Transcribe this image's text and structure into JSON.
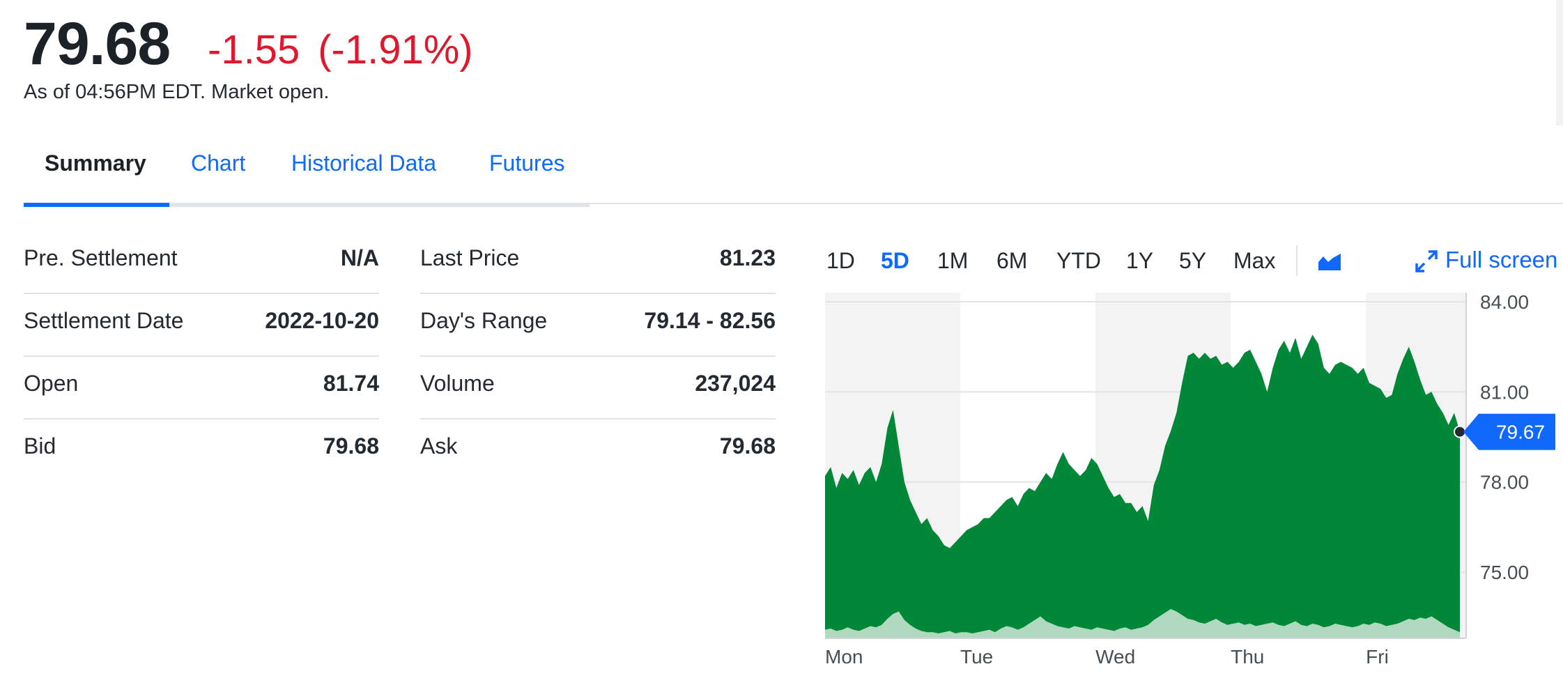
{
  "quote": {
    "price": "79.68",
    "change": "-1.55",
    "change_pct": "(-1.91%)",
    "as_of": "As of 04:56PM EDT. Market open."
  },
  "tabs": [
    {
      "label": "Summary",
      "active": true
    },
    {
      "label": "Chart"
    },
    {
      "label": "Historical Data"
    },
    {
      "label": "Futures"
    }
  ],
  "stats_left": [
    {
      "label": "Pre. Settlement",
      "value": "N/A"
    },
    {
      "label": "Settlement Date",
      "value": "2022-10-20"
    },
    {
      "label": "Open",
      "value": "81.74"
    },
    {
      "label": "Bid",
      "value": "79.68"
    }
  ],
  "stats_right": [
    {
      "label": "Last Price",
      "value": "81.23"
    },
    {
      "label": "Day's Range",
      "value": "79.14 - 82.56"
    },
    {
      "label": "Volume",
      "value": "237,024"
    },
    {
      "label": "Ask",
      "value": "79.68"
    }
  ],
  "chart_controls": {
    "ranges": [
      "1D",
      "5D",
      "1M",
      "6M",
      "YTD",
      "1Y",
      "5Y",
      "Max"
    ],
    "active_range": "5D",
    "chart_type_icon": "area-chart-icon",
    "fullscreen_label": "Full screen",
    "fullscreen_icon": "expand-icon"
  },
  "colors": {
    "accent": "#0f69ff",
    "negative": "#e0182d",
    "area_fill": "#008737",
    "volume_fill": "#cfe8d8",
    "band": "#f3f3f3"
  },
  "chart_data": {
    "type": "area",
    "x_labels": [
      "Mon",
      "Tue",
      "Wed",
      "Thu",
      "Fri"
    ],
    "y_ticks": [
      "84.00",
      "81.00",
      "78.00",
      "75.00"
    ],
    "y_tick_values": [
      84,
      81,
      78,
      75
    ],
    "ylim": [
      72.8,
      84.3
    ],
    "last_value_label": "79.67",
    "last_value": 79.67,
    "grid": true,
    "series": [
      {
        "values": [
          78.2,
          78.5,
          77.8,
          78.3,
          78.1,
          78.4,
          77.9,
          78.3,
          78.5,
          78.0,
          78.6,
          79.8,
          80.4,
          79.2,
          78.0,
          77.4,
          77.0,
          76.6,
          76.8,
          76.4,
          76.2,
          75.9,
          75.8,
          76.0,
          76.2,
          76.4,
          76.5,
          76.6,
          76.8,
          76.8,
          77.0,
          77.2,
          77.4,
          77.5,
          77.2,
          77.6,
          77.8,
          77.7,
          78.0,
          78.3,
          78.1,
          78.6,
          79.0,
          78.6,
          78.4,
          78.2,
          78.4,
          78.8,
          78.6,
          78.2,
          77.8,
          77.5,
          77.6,
          77.3,
          77.3,
          77.0,
          77.2,
          76.7,
          77.9,
          78.4,
          79.2,
          79.7,
          80.3,
          81.3,
          82.2,
          82.3,
          82.1,
          82.3,
          82.1,
          82.2,
          81.9,
          82.0,
          81.8,
          82.0,
          82.3,
          82.4,
          82.0,
          81.6,
          81.0,
          81.8,
          82.4,
          82.7,
          82.3,
          82.8,
          82.1,
          82.5,
          82.9,
          82.6,
          81.8,
          81.6,
          81.9,
          82.0,
          81.9,
          81.8,
          81.6,
          81.8,
          81.3,
          81.2,
          81.1,
          80.8,
          80.9,
          81.6,
          82.1,
          82.5,
          82.0,
          81.4,
          80.9,
          81.0,
          80.6,
          80.3,
          79.9,
          80.3,
          79.67
        ],
        "volume": [
          0.7,
          0.8,
          0.6,
          0.7,
          0.9,
          0.7,
          0.6,
          0.8,
          1.0,
          0.9,
          1.1,
          1.6,
          2.0,
          2.2,
          1.5,
          1.1,
          0.8,
          0.6,
          0.5,
          0.5,
          0.4,
          0.5,
          0.6,
          0.4,
          0.5,
          0.5,
          0.4,
          0.5,
          0.6,
          0.7,
          0.5,
          0.8,
          1.0,
          0.9,
          0.7,
          0.9,
          1.2,
          1.5,
          1.8,
          1.4,
          1.2,
          1.0,
          0.9,
          0.8,
          1.0,
          0.9,
          0.8,
          0.7,
          0.9,
          0.8,
          0.7,
          0.6,
          0.8,
          0.9,
          0.7,
          0.8,
          0.9,
          1.1,
          1.5,
          1.8,
          2.1,
          2.4,
          2.2,
          1.9,
          1.6,
          1.5,
          1.3,
          1.2,
          1.4,
          1.6,
          1.3,
          1.1,
          1.2,
          1.3,
          1.1,
          1.2,
          1.0,
          1.1,
          1.2,
          1.3,
          1.1,
          1.0,
          1.2,
          1.4,
          1.1,
          1.0,
          1.2,
          1.1,
          0.9,
          1.0,
          1.2,
          1.1,
          1.0,
          0.9,
          1.0,
          1.2,
          1.1,
          1.3,
          1.2,
          1.0,
          1.1,
          1.2,
          1.4,
          1.6,
          1.5,
          1.7,
          1.6,
          1.8,
          1.5,
          1.2,
          0.9,
          0.7,
          0.5
        ]
      }
    ]
  }
}
